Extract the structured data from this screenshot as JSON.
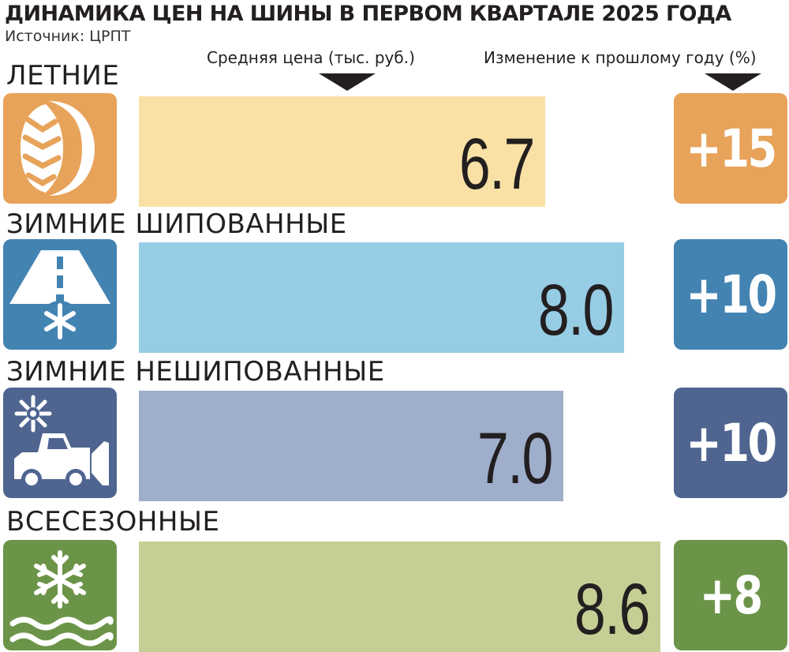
{
  "header": {
    "title": "ДИНАМИКА ЦЕН НА ШИНЫ В ПЕРВОМ КВАРТАЛЕ 2025 ГОДА",
    "source": "Источник: ЦРПТ",
    "price_column": "Средняя цена (тыс. руб.)",
    "change_column": "Изменение к прошлому году (%)"
  },
  "chart_data": {
    "type": "bar",
    "orientation": "horizontal",
    "title": "ДИНАМИКА ЦЕН НА ШИНЫ В ПЕРВОМ КВАРТАЛЕ 2025 ГОДА",
    "categories": [
      "ЛЕТНИЕ",
      "ЗИМНИЕ ШИПОВАННЫЕ",
      "ЗИМНИЕ НЕШИПОВАННЫЕ",
      "ВСЕСЕЗОННЫЕ"
    ],
    "values": [
      6.7,
      8.0,
      7.0,
      8.6
    ],
    "value_labels": [
      "6.7",
      "8.0",
      "7.0",
      "8.6"
    ],
    "changes": [
      "+15",
      "+10",
      "+10",
      "+8"
    ],
    "xlim": [
      0,
      9.0
    ],
    "grid": false,
    "legend": "none",
    "rows": [
      {
        "label": "ЛЕТНИЕ",
        "icon": "summer-tire-icon",
        "bar_color": "#f9e1a5",
        "badge_color": "#e8a35a"
      },
      {
        "label": "ЗИМНИЕ ШИПОВАННЫЕ",
        "icon": "snowy-road-icon",
        "bar_color": "#96cde4",
        "badge_color": "#4383b2"
      },
      {
        "label": "ЗИМНИЕ НЕШИПОВАННЫЕ",
        "icon": "snowplow-icon",
        "bar_color": "#9eaecb",
        "badge_color": "#4f6590"
      },
      {
        "label": "ВСЕСЕЗОННЫЕ",
        "icon": "snowflake-water-icon",
        "bar_color": "#c5cf95",
        "badge_color": "#6c9449"
      }
    ]
  }
}
